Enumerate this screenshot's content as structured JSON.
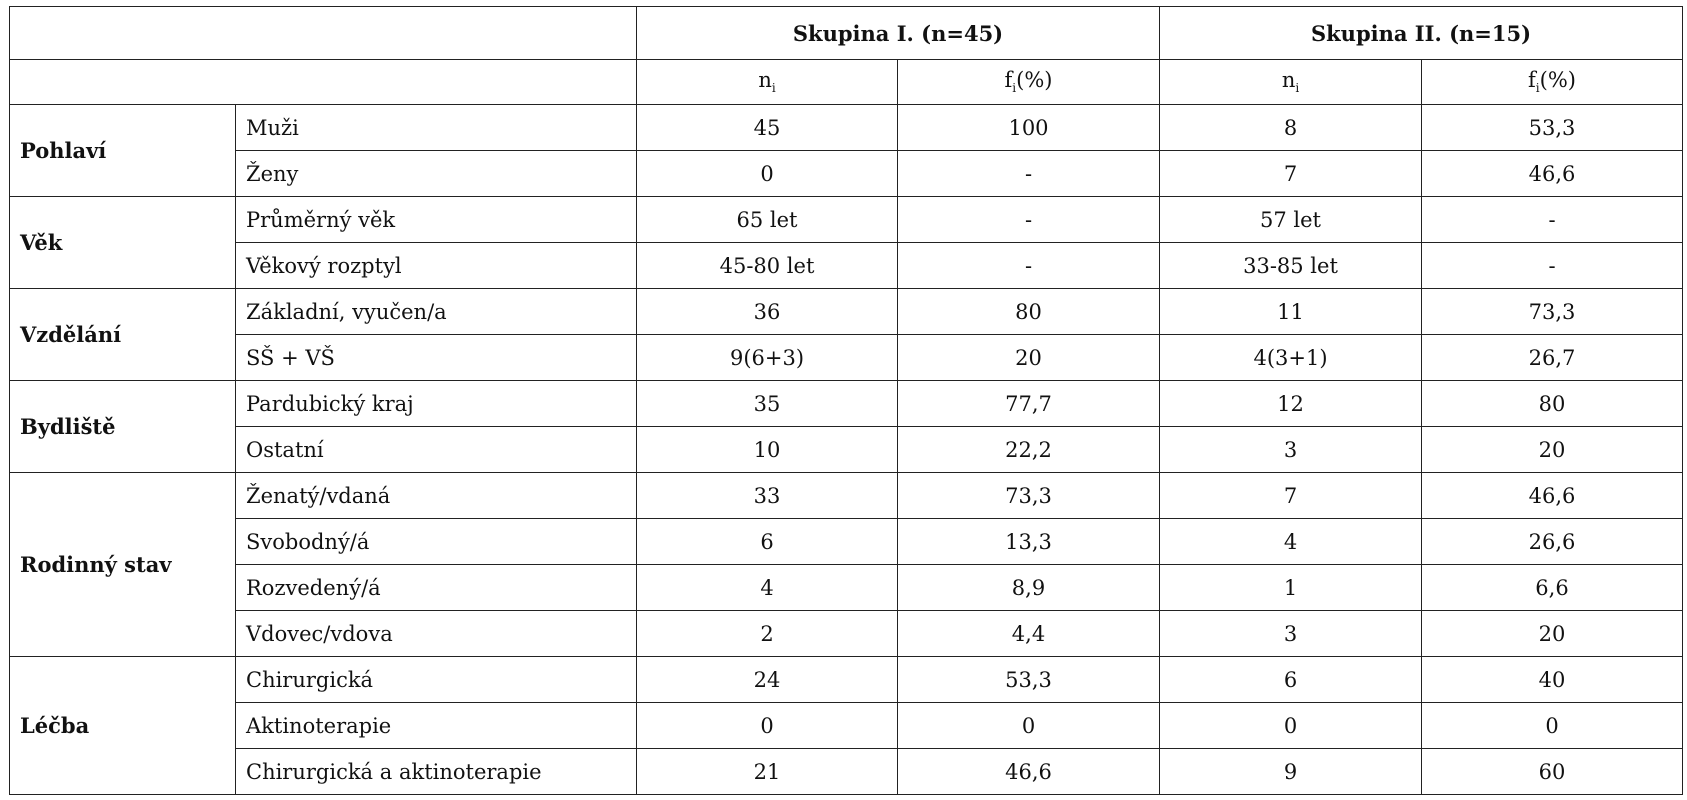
{
  "table": {
    "groups": [
      "Skupina I. (n=45)",
      "Skupina II. (n=15)"
    ],
    "subheaders": [
      {
        "main": "n",
        "sub": "i"
      },
      {
        "main": "f",
        "sub": "i",
        "suffix": "(%)"
      },
      {
        "main": "n",
        "sub": "i"
      },
      {
        "main": "f",
        "sub": "i",
        "suffix": "(%)"
      }
    ],
    "sections": [
      {
        "label": "Pohlaví",
        "rows": [
          [
            "Muži",
            "45",
            "100",
            "8",
            "53,3"
          ],
          [
            "Ženy",
            "0",
            "-",
            "7",
            "46,6"
          ]
        ]
      },
      {
        "label": "Věk",
        "rows": [
          [
            "Průměrný věk",
            "65 let",
            "-",
            "57 let",
            "-"
          ],
          [
            "Věkový rozptyl",
            "45-80 let",
            "-",
            "33-85 let",
            "-"
          ]
        ]
      },
      {
        "label": "Vzdělání",
        "rows": [
          [
            "Základní, vyučen/a",
            "36",
            "80",
            "11",
            "73,3"
          ],
          [
            "SŠ + VŠ",
            "9(6+3)",
            "20",
            "4(3+1)",
            "26,7"
          ]
        ]
      },
      {
        "label": "Bydliště",
        "rows": [
          [
            "Pardubický kraj",
            "35",
            "77,7",
            "12",
            "80"
          ],
          [
            "Ostatní",
            "10",
            "22,2",
            "3",
            "20"
          ]
        ]
      },
      {
        "label": "Rodinný stav",
        "rows": [
          [
            "Ženatý/vdaná",
            "33",
            "73,3",
            "7",
            "46,6"
          ],
          [
            "Svobodný/á",
            "6",
            "13,3",
            "4",
            "26,6"
          ],
          [
            "Rozvedený/á",
            "4",
            "8,9",
            "1",
            "6,6"
          ],
          [
            "Vdovec/vdova",
            "2",
            "4,4",
            "3",
            "20"
          ]
        ]
      },
      {
        "label": "Léčba",
        "rows": [
          [
            "Chirurgická",
            "24",
            "53,3",
            "6",
            "40"
          ],
          [
            "Aktinoterapie",
            "0",
            "0",
            "0",
            "0"
          ],
          [
            "Chirurgická a aktinoterapie",
            "21",
            "46,6",
            "9",
            "60"
          ]
        ]
      }
    ]
  }
}
